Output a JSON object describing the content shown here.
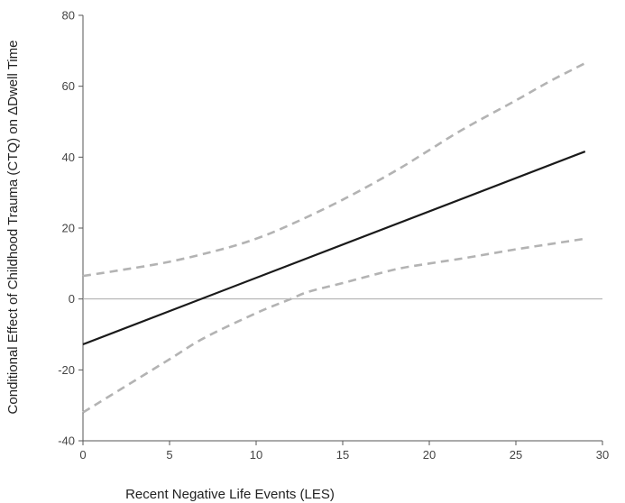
{
  "chart_data": {
    "type": "line",
    "xlabel": "Recent Negative Life Events (LES)",
    "ylabel": "Conditional Effect of Childhood Trauma (CTQ) on  ΔDwell Time",
    "xlim": [
      0,
      30
    ],
    "ylim": [
      -40,
      80
    ],
    "x_ticks": [
      0,
      5,
      10,
      15,
      20,
      25,
      30
    ],
    "y_ticks": [
      -40,
      -20,
      0,
      20,
      40,
      60,
      80
    ],
    "grid": false,
    "reference_line_y": 0,
    "series": [
      {
        "style": "solid",
        "color": "#1a1a1a",
        "x": [
          0,
          29
        ],
        "y": [
          -12.8,
          41.6
        ]
      },
      {
        "style": "dashed",
        "color": "#b3b3b3",
        "x": [
          0,
          2,
          5,
          8,
          10,
          12,
          15,
          18,
          20,
          22,
          25,
          27,
          29
        ],
        "y": [
          6.5,
          8,
          10.5,
          14,
          17,
          21,
          28,
          36,
          42,
          48,
          56,
          61.5,
          66.5
        ]
      },
      {
        "style": "dashed",
        "color": "#b3b3b3",
        "x": [
          0,
          2,
          5,
          7,
          10,
          12,
          13,
          15,
          18,
          20,
          22,
          25,
          27,
          29
        ],
        "y": [
          -32,
          -26,
          -17,
          -11,
          -4,
          0,
          2,
          4.5,
          8.3,
          10,
          11.5,
          14,
          15.5,
          17
        ]
      }
    ]
  }
}
